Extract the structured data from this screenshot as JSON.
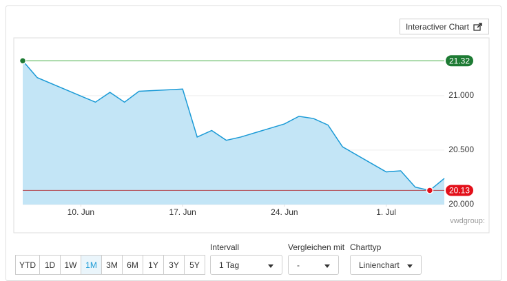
{
  "chart_data": {
    "type": "area",
    "series": [
      {
        "color": "#1a9ad6",
        "fill": "#c3e5f6",
        "x": [
          "06-06",
          "06-07",
          "06-11",
          "06-12",
          "06-13",
          "06-14",
          "06-17",
          "06-18",
          "06-19",
          "06-20",
          "06-21",
          "06-24",
          "06-25",
          "06-26",
          "06-27",
          "06-28",
          "07-01",
          "07-02",
          "07-03",
          "07-04",
          "07-05"
        ],
        "values": [
          21.32,
          21.165,
          20.94,
          21.03,
          20.94,
          21.04,
          21.06,
          20.62,
          20.68,
          20.59,
          20.62,
          20.74,
          20.81,
          20.79,
          20.73,
          20.53,
          20.3,
          20.31,
          20.16,
          20.13,
          20.24
        ]
      }
    ],
    "xlim": [
      "06-06",
      "07-05"
    ],
    "xticks": [
      {
        "value": "06-10",
        "label": "10. Jun"
      },
      {
        "value": "06-17",
        "label": "17. Jun"
      },
      {
        "value": "06-24",
        "label": "24. Jun"
      },
      {
        "value": "07-01",
        "label": "1. Jul"
      }
    ],
    "ylim": [
      20,
      21.53
    ],
    "yticks": [
      {
        "value": 20,
        "label": "20.000"
      },
      {
        "value": 20.5,
        "label": "20.500"
      },
      {
        "value": 21,
        "label": "21.000"
      }
    ],
    "grid": true,
    "annotations": [
      {
        "value": 21.32,
        "color": "#1e7b34",
        "line_color": "#6cbf6c"
      },
      {
        "value": 20.13,
        "color": "#e3101a",
        "line_color": "#b5525a"
      }
    ],
    "watermark": "vwdgroup:"
  },
  "ui": {
    "interactive_button": "Interactiver Chart",
    "ranges": [
      "YTD",
      "1D",
      "1W",
      "1M",
      "3M",
      "6M",
      "1Y",
      "3Y",
      "5Y"
    ],
    "active_range": "1M",
    "dropdowns": [
      {
        "label": "Intervall",
        "value": "1 Tag"
      },
      {
        "label": "Vergleichen mit",
        "value": "-"
      },
      {
        "label": "Charttyp",
        "value": "Linienchart"
      }
    ]
  }
}
